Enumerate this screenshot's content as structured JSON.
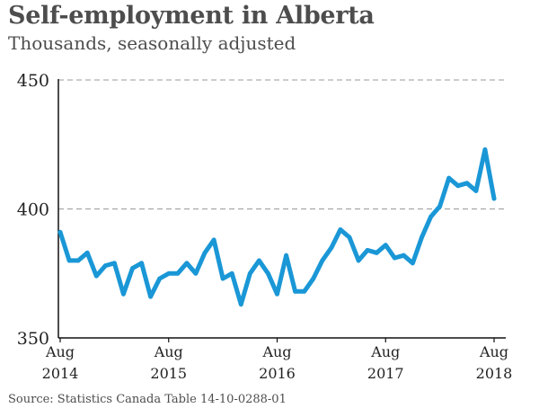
{
  "chart_data": {
    "type": "line",
    "title": "Self-employment in Alberta",
    "subtitle": "Thousands, seasonally adjusted",
    "source": "Source: Statistics Canada Table 14-10-0288-01",
    "ylim": [
      350,
      450
    ],
    "yticks": [
      {
        "value": 450,
        "label": "450"
      },
      {
        "value": 400,
        "label": "400"
      },
      {
        "value": 350,
        "label": "350"
      }
    ],
    "xticks": [
      {
        "index": 0,
        "month": "Aug",
        "year": "2014"
      },
      {
        "index": 12,
        "month": "Aug",
        "year": "2015"
      },
      {
        "index": 24,
        "month": "Aug",
        "year": "2016"
      },
      {
        "index": 36,
        "month": "Aug",
        "year": "2017"
      },
      {
        "index": 48,
        "month": "Aug",
        "year": "2018"
      }
    ],
    "grid": true,
    "series": [
      {
        "color": "#1a97d6",
        "values": [
          391,
          380,
          380,
          383,
          374,
          378,
          379,
          367,
          377,
          379,
          366,
          373,
          375,
          375,
          379,
          375,
          383,
          388,
          373,
          375,
          363,
          375,
          380,
          375,
          367,
          382,
          368,
          368,
          373,
          380,
          385,
          392,
          389,
          380,
          384,
          383,
          386,
          381,
          382,
          379,
          389,
          397,
          401,
          412,
          409,
          410,
          407,
          423,
          404
        ]
      }
    ]
  }
}
